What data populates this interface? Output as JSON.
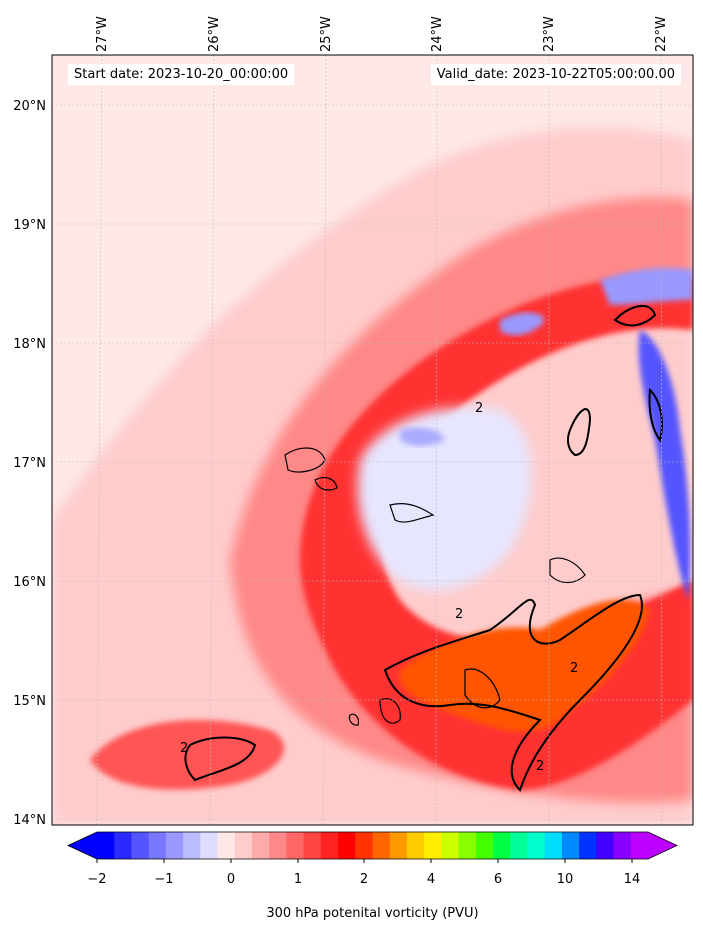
{
  "header": {
    "start_date": "Start date: 2023-10-20_00:00:00",
    "valid_date": "Valid_date: 2023-10-22T05:00:00.00"
  },
  "axes": {
    "lon_labels": [
      "27°W",
      "26°W",
      "25°W",
      "24°W",
      "23°W",
      "22°W"
    ],
    "lat_labels": [
      "20°N",
      "19°N",
      "18°N",
      "17°N",
      "16°N",
      "15°N",
      "14°N"
    ],
    "contour_label": "2"
  },
  "colorbar": {
    "title": "300 hPa potenital vorticity (PVU)",
    "tick_labels": [
      "−2",
      "−1",
      "0",
      "1",
      "2",
      "4",
      "6",
      "10",
      "14"
    ],
    "colors": [
      "#0000ff",
      "#2a2aff",
      "#5555ff",
      "#7777ff",
      "#9999ff",
      "#bbbbff",
      "#ddddff",
      "#ffe8e8",
      "#ffcccc",
      "#ffaaaa",
      "#ff8888",
      "#ff6666",
      "#ff4444",
      "#ff2222",
      "#ff0000",
      "#ff3300",
      "#ff6600",
      "#ff9900",
      "#ffcc00",
      "#ffee00",
      "#ccff00",
      "#88ff00",
      "#44ff00",
      "#00ff44",
      "#00ff99",
      "#00ffcc",
      "#00ddff",
      "#0088ff",
      "#0033ff",
      "#4400ff",
      "#8800ff",
      "#bb00ff"
    ]
  },
  "colors": {
    "background_field": "#ffe8e8",
    "low_pv": "#ffcccc",
    "medium_pv": "#ff6666",
    "high_pv": "#ff0000",
    "very_high_pv": "#ff5500",
    "negative_pv": "#8888ff",
    "coastline": "#000000"
  }
}
